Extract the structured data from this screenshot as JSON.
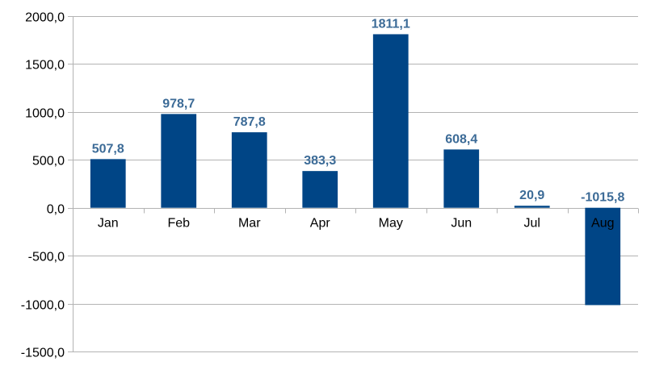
{
  "chart_data": {
    "type": "bar",
    "categories": [
      "Jan",
      "Feb",
      "Mar",
      "Apr",
      "May",
      "Jun",
      "Jul",
      "Aug"
    ],
    "values": [
      507.8,
      978.7,
      787.8,
      383.3,
      1811.1,
      608.4,
      20.9,
      -1015.8
    ],
    "data_labels": [
      "507,8",
      "978,7",
      "787,8",
      "383,3",
      "1811,1",
      "608,4",
      "20,9",
      "-1015,8"
    ],
    "ylim": [
      -1500,
      2000
    ],
    "y_ticks": [
      2000,
      1500,
      1000,
      500,
      0,
      -500,
      -1000,
      -1500
    ],
    "y_tick_labels": [
      "2000,0",
      "1500,0",
      "1000,0",
      "500,0",
      "0,0",
      "-500,0",
      "-1000,0",
      "-1500,0"
    ],
    "grid": true,
    "legend": "none",
    "title": "",
    "xlabel": "",
    "ylabel": "",
    "bar_color": "#004586",
    "label_color": "#3c6b97"
  }
}
